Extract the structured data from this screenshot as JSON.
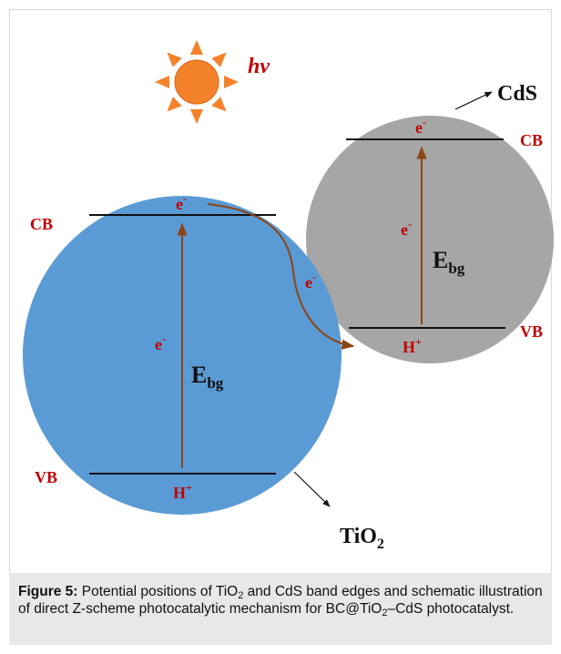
{
  "figure": {
    "light": "hv",
    "tio2": {
      "name": "TiO",
      "name_sub": "2",
      "cb": "CB",
      "vb": "VB",
      "electron_top": "e",
      "electron_mid": "e",
      "hole": "H",
      "ebg": "E",
      "ebg_sub": "bg"
    },
    "cds": {
      "name": "CdS",
      "cb": "CB",
      "vb": "VB",
      "electron_top": "e",
      "electron_mid": "e",
      "hole": "H",
      "ebg": "E",
      "ebg_sub": "bg"
    },
    "transfer_electron": "e",
    "minus": "-",
    "plus": "+"
  },
  "colors": {
    "tio2_fill": "#5b9bd5",
    "cds_fill": "#a6a6a6",
    "label_red": "#c00000",
    "arrow_brown": "#8b4513",
    "sun_fill": "#f4822a"
  },
  "caption": {
    "label": "Figure 5:",
    "t1": " Potential positions of TiO",
    "s1": "2",
    "t2": " and CdS band edges and schematic illustration of direct Z-scheme photocatalytic mechanism for BC@TiO",
    "s2": "2",
    "t3": "–CdS photocatalyst."
  }
}
